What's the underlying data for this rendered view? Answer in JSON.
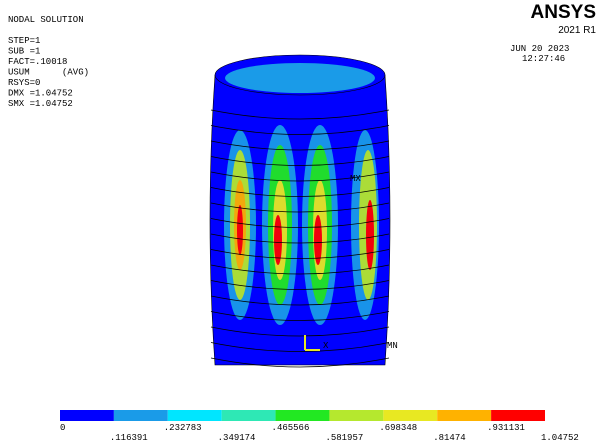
{
  "info": {
    "title": "NODAL SOLUTION",
    "lines": [
      "STEP=1",
      "SUB =1",
      "FACT=.10018",
      "USUM      (AVG)",
      "RSYS=0",
      "DMX =1.04752",
      "SMX =1.04752"
    ]
  },
  "brand": {
    "name": "ANSYS",
    "version": "2021 R1",
    "date": "JUN 20 2023",
    "time": "12:27:46"
  },
  "markers": {
    "max": "MX",
    "min": "MN",
    "axis": "X"
  },
  "legend": {
    "colors": [
      "#0000ff",
      "#1a9be8",
      "#00e6ff",
      "#2ee8b5",
      "#22e822",
      "#b5e82e",
      "#e8e822",
      "#ffb200",
      "#ff0000"
    ],
    "labels": [
      "0",
      ".116391",
      ".232783",
      ".349174",
      ".465566",
      ".581957",
      ".698348",
      ".81474",
      ".931131",
      "1.04752"
    ]
  }
}
